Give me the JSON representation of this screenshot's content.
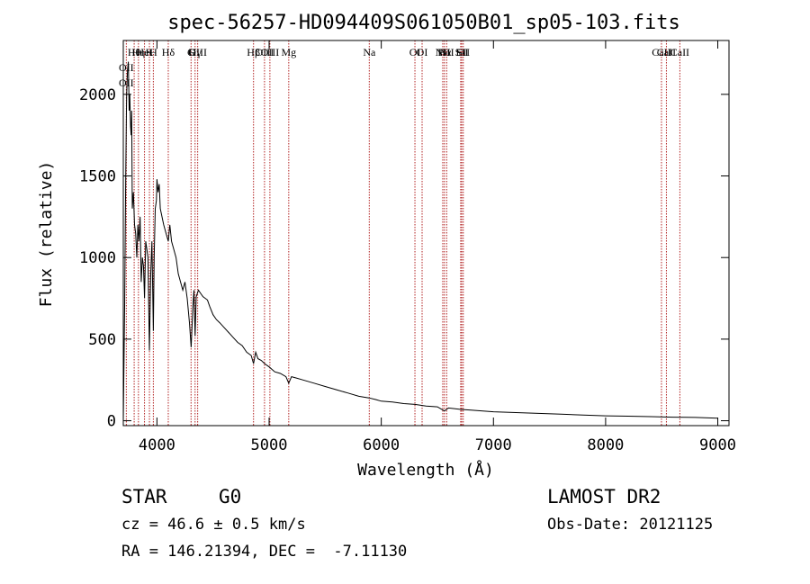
{
  "chart_data": {
    "type": "line",
    "title": "spec-56257-HD094409S061050B01_sp05-103.fits",
    "xlabel": "Wavelength (Å)",
    "ylabel": "Flux (relative)",
    "xlim": [
      3700,
      9100
    ],
    "ylim": [
      -30,
      2330
    ],
    "xticks": [
      4000,
      5000,
      6000,
      7000,
      8000,
      9000
    ],
    "yticks": [
      0,
      500,
      1000,
      1500,
      2000
    ],
    "tick_labels_x": [
      "4000",
      "5000",
      "6000",
      "7000",
      "8000",
      "9000"
    ],
    "tick_labels_y": [
      "0",
      "500",
      "1000",
      "1500",
      "2000"
    ],
    "line_color": "#000000",
    "marker_color": "#b22222",
    "series": [
      {
        "x": [
          3700,
          3712,
          3722,
          3730,
          3738,
          3745,
          3752,
          3758,
          3765,
          3770,
          3775,
          3780,
          3790,
          3800,
          3810,
          3820,
          3830,
          3840,
          3850,
          3860,
          3870,
          3880,
          3889,
          3900,
          3910,
          3920,
          3933,
          3945,
          3955,
          3968,
          3975,
          3985,
          3995,
          4000,
          4010,
          4020,
          4030,
          4045,
          4060,
          4080,
          4101,
          4115,
          4130,
          4150,
          4170,
          4190,
          4210,
          4230,
          4250,
          4270,
          4290,
          4305,
          4320,
          4330,
          4340,
          4350,
          4370,
          4390,
          4410,
          4430,
          4450,
          4470,
          4500,
          4530,
          4560,
          4600,
          4640,
          4680,
          4720,
          4760,
          4800,
          4840,
          4861,
          4880,
          4900,
          4930,
          4960,
          5000,
          5050,
          5100,
          5150,
          5175,
          5200,
          5250,
          5300,
          5400,
          5500,
          5600,
          5700,
          5800,
          5890,
          5950,
          6000,
          6100,
          6200,
          6300,
          6400,
          6500,
          6563,
          6600,
          6700,
          6800,
          7000,
          7200,
          7400,
          7600,
          7800,
          8000,
          8200,
          8400,
          8600,
          8800,
          9000
        ],
        "y": [
          0,
          700,
          1500,
          2000,
          2150,
          2200,
          1900,
          2000,
          1800,
          1750,
          1900,
          1300,
          1400,
          1200,
          1150,
          1000,
          1200,
          1100,
          1250,
          850,
          1000,
          950,
          750,
          1100,
          1050,
          1000,
          430,
          900,
          1100,
          550,
          1000,
          1300,
          1350,
          1480,
          1400,
          1450,
          1300,
          1250,
          1200,
          1150,
          1100,
          1200,
          1100,
          1050,
          1000,
          900,
          850,
          800,
          850,
          750,
          600,
          450,
          700,
          800,
          520,
          760,
          800,
          780,
          760,
          750,
          740,
          700,
          650,
          620,
          600,
          570,
          540,
          510,
          480,
          460,
          420,
          400,
          350,
          420,
          380,
          370,
          350,
          330,
          300,
          290,
          270,
          230,
          270,
          260,
          250,
          230,
          210,
          190,
          170,
          150,
          140,
          130,
          120,
          115,
          105,
          100,
          90,
          85,
          60,
          78,
          70,
          65,
          55,
          50,
          45,
          40,
          35,
          30,
          28,
          25,
          22,
          20,
          15
        ]
      }
    ],
    "line_markers": [
      {
        "x": 3727,
        "rows": [
          "OII",
          "OII"
        ]
      },
      {
        "x": 3797,
        "rows": [
          "Hθ"
        ]
      },
      {
        "x": 3835,
        "rows": [
          "Hη"
        ]
      },
      {
        "x": 3889,
        "rows": [
          "HeI"
        ]
      },
      {
        "x": 3933,
        "rows": [
          "K"
        ]
      },
      {
        "x": 3968,
        "rows": [
          "H"
        ]
      },
      {
        "x": 4101,
        "rows": [
          "Hδ"
        ]
      },
      {
        "x": 4304,
        "rows": [
          "G"
        ]
      },
      {
        "x": 4340,
        "rows": [
          "Hγ"
        ]
      },
      {
        "x": 4363,
        "rows": [
          "OIII"
        ]
      },
      {
        "x": 4861,
        "rows": [
          "Hβ"
        ]
      },
      {
        "x": 4959,
        "rows": [
          "OIII"
        ]
      },
      {
        "x": 5007,
        "rows": [
          "OIII"
        ]
      },
      {
        "x": 5175,
        "rows": [
          "Mg"
        ]
      },
      {
        "x": 5893,
        "rows": [
          "Na"
        ]
      },
      {
        "x": 6300,
        "rows": [
          "OI"
        ]
      },
      {
        "x": 6364,
        "rows": [
          "OI"
        ]
      },
      {
        "x": 6548,
        "rows": [
          "NII"
        ]
      },
      {
        "x": 6563,
        "rows": [
          "Hα"
        ]
      },
      {
        "x": 6583,
        "rows": [
          "NII"
        ]
      },
      {
        "x": 6708,
        "rows": [
          "Li"
        ]
      },
      {
        "x": 6717,
        "rows": [
          "SII"
        ]
      },
      {
        "x": 6731,
        "rows": [
          "SII"
        ]
      },
      {
        "x": 8498,
        "rows": [
          "CaII"
        ]
      },
      {
        "x": 8542,
        "rows": [
          "CaII"
        ]
      },
      {
        "x": 8662,
        "rows": [
          "CaII"
        ]
      }
    ]
  },
  "info": {
    "class_label": "STAR",
    "subclass": "G0",
    "survey": "LAMOST DR2",
    "cz": "cz = 46.6 ± 0.5 km/s",
    "obs_date": "Obs-Date: 20121125",
    "coords": "RA = 146.21394, DEC =  -7.11130"
  }
}
